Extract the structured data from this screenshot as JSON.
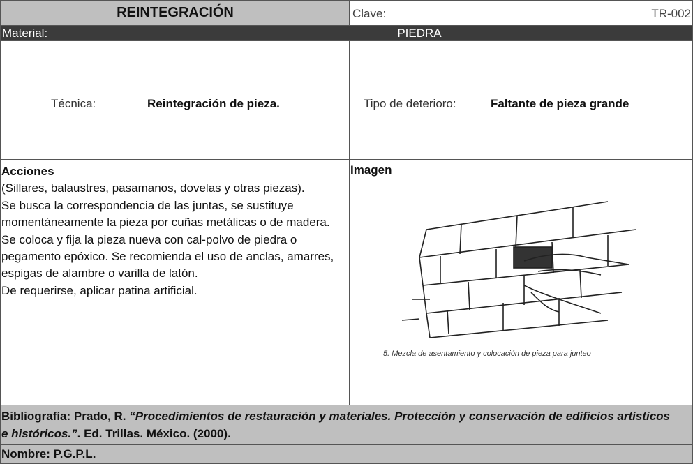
{
  "header": {
    "title": "REINTEGRACIÓN",
    "clave_label": "Clave:",
    "clave": "TR-002",
    "material_label": "Material:",
    "material": "PIEDRA"
  },
  "tecnica": {
    "label": "Técnica:",
    "value": "Reintegración de pieza."
  },
  "deterioro": {
    "label": "Tipo de deterioro:",
    "value": "Faltante de pieza grande"
  },
  "acciones": {
    "title": "Acciones",
    "paragraphs": [
      "(Sillares, balaustres, pasamanos, dovelas y otras piezas).",
      "Se busca la correspondencia de las juntas, se sustituye momentáneamente la pieza por cuñas metálicas o de madera.",
      "Se coloca y fija la pieza nueva con cal-polvo de piedra o pegamento epóxico. Se recomienda el uso de anclas, amarres, espigas de alambre o varilla de latón.",
      "De requerirse, aplicar patina artificial."
    ]
  },
  "imagen": {
    "title": "Imagen",
    "caption": "5. Mezcla de asentamiento y colocación de pieza para junteo"
  },
  "bibliografia": {
    "lead": "Bibliografía: Prado, R. ",
    "work": "“Procedimientos de restauración y materiales. Protección y conservación de edificios artísticos e históricos.”",
    "tail": ". Ed. Trillas. México. (2000)."
  },
  "nombre": "Nombre: P.G.P.L."
}
